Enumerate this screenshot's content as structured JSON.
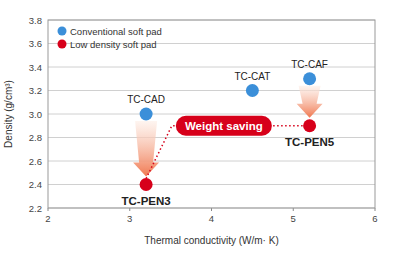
{
  "chart_data": {
    "type": "scatter",
    "x_label": "Thermal conductivity (W/m· K)",
    "y_label": "Density (g/cm³)",
    "xlim": [
      2,
      6
    ],
    "xticks": [
      2,
      3,
      4,
      5,
      6
    ],
    "ylim": [
      2.2,
      3.8
    ],
    "yticks": [
      2.2,
      2.4,
      2.6,
      2.8,
      {
        "value": 3,
        "label": "3.0"
      },
      3.2,
      3.4,
      3.6,
      3.8
    ],
    "grid": true,
    "legend": "top-left",
    "series": [
      {
        "name": "Conventional soft pad",
        "color": "#3b8fd9",
        "marker": "circle",
        "x": [
          3.2,
          4.5,
          5.2
        ],
        "values": [
          3.0,
          3.2,
          3.3
        ],
        "labels": [
          "TC-CAD",
          "TC-CAT",
          "TC-CAF"
        ]
      },
      {
        "name": "Low density soft pad",
        "color": "#d7001a",
        "marker": "circle",
        "x": [
          3.2,
          5.2
        ],
        "values": [
          2.4,
          2.9
        ],
        "labels": [
          "TC-PEN3",
          "TC-PEN5"
        ]
      }
    ],
    "annotations": [
      "Weight saving"
    ]
  }
}
